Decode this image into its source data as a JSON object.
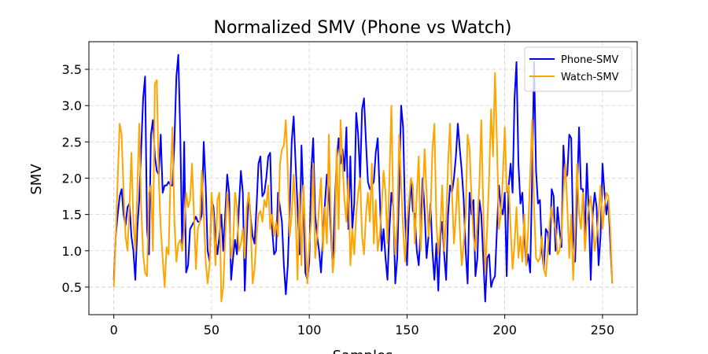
{
  "chart_data": {
    "type": "line",
    "title": "Normalized SMV (Phone vs Watch)",
    "x_label": "Samples",
    "y_label": "SMV",
    "x": [
      0,
      1,
      2,
      3,
      4,
      5,
      6,
      7,
      8,
      9,
      10,
      11,
      12,
      13,
      14,
      15,
      16,
      17,
      18,
      19,
      20,
      21,
      22,
      23,
      24,
      25,
      26,
      27,
      28,
      29,
      30,
      31,
      32,
      33,
      34,
      35,
      36,
      37,
      38,
      39,
      40,
      41,
      42,
      43,
      44,
      45,
      46,
      47,
      48,
      49,
      50,
      51,
      52,
      53,
      54,
      55,
      56,
      57,
      58,
      59,
      60,
      61,
      62,
      63,
      64,
      65,
      66,
      67,
      68,
      69,
      70,
      71,
      72,
      73,
      74,
      75,
      76,
      77,
      78,
      79,
      80,
      81,
      82,
      83,
      84,
      85,
      86,
      87,
      88,
      89,
      90,
      91,
      92,
      93,
      94,
      95,
      96,
      97,
      98,
      99,
      100,
      101,
      102,
      103,
      104,
      105,
      106,
      107,
      108,
      109,
      110,
      111,
      112,
      113,
      114,
      115,
      116,
      117,
      118,
      119,
      120,
      121,
      122,
      123,
      124,
      125,
      126,
      127,
      128,
      129,
      130,
      131,
      132,
      133,
      134,
      135,
      136,
      137,
      138,
      139,
      140,
      141,
      142,
      143,
      144,
      145,
      146,
      147,
      148,
      149,
      150,
      151,
      152,
      153,
      154,
      155,
      156,
      157,
      158,
      159,
      160,
      161,
      162,
      163,
      164,
      165,
      166,
      167,
      168,
      169,
      170,
      171,
      172,
      173,
      174,
      175,
      176,
      177,
      178,
      179,
      180,
      181,
      182,
      183,
      184,
      185,
      186,
      187,
      188,
      189,
      190,
      191,
      192,
      193,
      194,
      195,
      196,
      197,
      198,
      199,
      200,
      201,
      202,
      203,
      204,
      205,
      206,
      207,
      208,
      209,
      210,
      211,
      212,
      213,
      214,
      215,
      216,
      217,
      218,
      219,
      220,
      221,
      222,
      223,
      224,
      225,
      226,
      227,
      228,
      229,
      230,
      231,
      232,
      233,
      234,
      235,
      236,
      237,
      238,
      239,
      240,
      241,
      242,
      243,
      244,
      245,
      246,
      247,
      248,
      249,
      250,
      251,
      252,
      253,
      254,
      255
    ],
    "series": [
      {
        "name": "Phone-SMV",
        "color": "#0000ff",
        "values": [
          0.6,
          1.2,
          1.5,
          1.75,
          1.85,
          1.5,
          1.35,
          1.6,
          1.65,
          1.2,
          1.0,
          0.6,
          1.3,
          1.7,
          2.4,
          3.1,
          3.4,
          1.3,
          0.95,
          2.6,
          2.8,
          2.3,
          2.1,
          2.05,
          2.6,
          1.8,
          1.9,
          1.9,
          1.95,
          1.9,
          1.9,
          2.5,
          3.4,
          3.7,
          2.6,
          1.0,
          2.5,
          0.7,
          0.8,
          1.3,
          1.35,
          1.4,
          1.47,
          1.4,
          1.4,
          1.5,
          2.5,
          1.9,
          1.0,
          0.85,
          1.7,
          1.6,
          1.2,
          0.95,
          1.2,
          1.5,
          1.0,
          1.5,
          2.05,
          1.8,
          0.6,
          0.9,
          1.15,
          0.95,
          1.6,
          2.1,
          1.8,
          0.45,
          1.2,
          1.8,
          1.45,
          1.2,
          1.1,
          1.6,
          2.2,
          2.3,
          1.75,
          1.8,
          2.0,
          2.3,
          2.35,
          1.3,
          0.95,
          1.0,
          1.8,
          1.6,
          1.4,
          0.8,
          0.4,
          0.8,
          1.6,
          2.5,
          2.85,
          2.2,
          1.6,
          0.95,
          2.45,
          1.7,
          0.7,
          0.6,
          0.85,
          2.1,
          2.55,
          1.5,
          1.2,
          1.0,
          0.7,
          1.2,
          1.65,
          2.05,
          1.8,
          1.3,
          0.75,
          1.6,
          2.25,
          2.55,
          2.2,
          2.4,
          2.1,
          2.7,
          1.3,
          2.3,
          1.3,
          1.65,
          2.9,
          2.6,
          2.0,
          2.95,
          3.1,
          2.5,
          1.95,
          1.85,
          1.9,
          1.95,
          2.35,
          2.55,
          1.8,
          1.0,
          1.3,
          0.9,
          0.6,
          1.3,
          1.8,
          1.6,
          0.55,
          0.9,
          1.9,
          3.0,
          2.7,
          1.5,
          0.8,
          1.55,
          1.95,
          1.55,
          1.5,
          1.0,
          0.8,
          1.3,
          2.0,
          1.55,
          0.9,
          1.2,
          1.65,
          1.0,
          0.6,
          1.1,
          0.45,
          1.2,
          1.4,
          0.95,
          0.6,
          1.5,
          1.9,
          1.8,
          2.0,
          2.3,
          2.75,
          2.4,
          2.1,
          1.7,
          1.0,
          0.55,
          1.8,
          1.5,
          1.7,
          0.65,
          0.9,
          1.7,
          1.5,
          0.9,
          0.3,
          0.9,
          0.95,
          0.5,
          0.6,
          0.65,
          1.3,
          1.9,
          1.6,
          1.5,
          1.8,
          0.65,
          1.9,
          2.2,
          1.8,
          3.1,
          3.6,
          2.2,
          1.65,
          1.8,
          1.2,
          0.8,
          0.95,
          0.7,
          2.0,
          3.6,
          2.1,
          1.65,
          1.7,
          1.0,
          0.75,
          1.3,
          1.25,
          0.95,
          1.85,
          1.75,
          1.0,
          1.6,
          1.3,
          1.05,
          2.45,
          2.0,
          2.05,
          2.6,
          2.55,
          1.2,
          0.85,
          1.8,
          2.7,
          1.85,
          1.85,
          1.2,
          2.2,
          1.5,
          0.6,
          1.5,
          1.8,
          1.6,
          0.8,
          1.2,
          2.2,
          1.8,
          1.5,
          1.7,
          1.1,
          0.55
        ]
      },
      {
        "name": "Watch-SMV",
        "color": "#ffa500",
        "values": [
          0.5,
          1.2,
          2.0,
          2.75,
          2.6,
          1.8,
          1.2,
          1.0,
          1.6,
          2.35,
          1.4,
          1.0,
          1.8,
          2.75,
          1.6,
          0.95,
          0.7,
          0.65,
          1.8,
          1.9,
          1.0,
          3.3,
          3.35,
          2.0,
          1.3,
          0.9,
          0.5,
          1.05,
          0.95,
          2.0,
          2.7,
          1.4,
          0.85,
          1.1,
          1.15,
          1.0,
          1.3,
          1.8,
          1.6,
          1.7,
          2.2,
          1.5,
          0.75,
          1.3,
          1.4,
          2.1,
          1.5,
          0.85,
          0.55,
          0.8,
          1.8,
          1.45,
          0.8,
          1.7,
          1.8,
          0.3,
          0.5,
          1.2,
          1.8,
          1.5,
          0.9,
          1.1,
          1.8,
          1.6,
          1.0,
          1.1,
          1.3,
          0.9,
          1.6,
          1.8,
          1.4,
          0.55,
          0.75,
          1.2,
          1.5,
          1.55,
          1.4,
          1.7,
          1.6,
          1.9,
          1.3,
          1.5,
          1.2,
          1.4,
          1.2,
          2.2,
          2.4,
          2.45,
          2.8,
          2.1,
          1.2,
          1.5,
          2.05,
          1.5,
          0.6,
          1.8,
          0.8,
          1.9,
          1.2,
          0.55,
          1.1,
          1.4,
          2.2,
          0.9,
          1.2,
          1.6,
          2.0,
          1.0,
          1.6,
          1.1,
          2.6,
          1.5,
          0.7,
          1.0,
          2.4,
          1.3,
          2.8,
          2.2,
          1.7,
          1.4,
          2.0,
          0.8,
          1.3,
          0.95,
          1.5,
          1.8,
          2.0,
          1.2,
          0.95,
          1.5,
          1.8,
          1.4,
          2.2,
          1.1,
          1.7,
          1.0,
          1.2,
          1.6,
          2.1,
          1.8,
          1.1,
          2.0,
          3.0,
          1.5,
          0.95,
          1.4,
          2.6,
          1.9,
          1.3,
          0.85,
          1.4,
          1.7,
          2.0,
          1.9,
          1.1,
          1.8,
          2.3,
          1.0,
          1.7,
          2.4,
          1.8,
          1.2,
          1.5,
          2.4,
          2.75,
          1.4,
          0.95,
          1.3,
          1.9,
          1.0,
          1.4,
          2.2,
          2.75,
          1.8,
          1.1,
          1.5,
          2.0,
          1.3,
          0.8,
          1.1,
          1.5,
          2.6,
          2.4,
          1.7,
          1.2,
          1.0,
          1.4,
          1.9,
          2.8,
          1.6,
          0.7,
          1.3,
          2.0,
          2.95,
          2.3,
          3.45,
          2.5,
          1.3,
          1.5,
          2.0,
          2.7,
          1.8,
          1.9,
          1.3,
          0.75,
          1.1,
          1.6,
          0.9,
          1.2,
          0.85,
          1.5,
          0.8,
          1.3,
          2.05,
          2.8,
          1.6,
          0.9,
          0.85,
          0.9,
          1.2,
          0.75,
          0.65,
          1.0,
          1.4,
          1.6,
          1.4,
          1.3,
          0.95,
          1.0,
          1.2,
          1.8,
          2.2,
          1.6,
          0.9,
          1.5,
          0.6,
          1.3,
          2.2,
          1.5,
          1.3,
          1.8,
          1.0,
          1.4,
          1.6,
          1.75,
          1.4,
          1.0,
          1.2,
          1.5,
          1.9,
          1.3,
          1.6,
          1.8,
          1.75,
          1.3,
          0.55
        ]
      }
    ],
    "xlim": [
      -12.75,
      267.75
    ],
    "ylim": [
      0.12,
      3.88
    ],
    "xticks": [
      0,
      50,
      100,
      150,
      200,
      250
    ],
    "yticks": [
      0.5,
      {
        "value": 1,
        "label": "1.0"
      },
      1.5,
      {
        "value": 2,
        "label": "2.0"
      },
      2.5,
      {
        "value": 3,
        "label": "3.0"
      },
      3.5
    ],
    "grid": true,
    "legend": "upper right"
  }
}
